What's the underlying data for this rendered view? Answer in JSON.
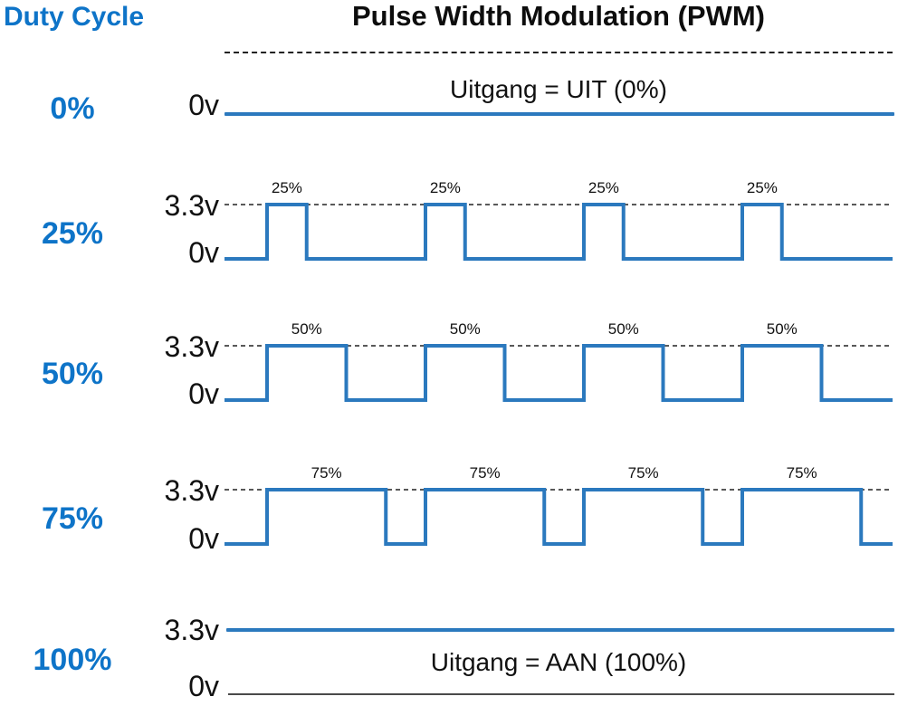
{
  "title": "Pulse Width Modulation (PWM)",
  "corner_label": "Duty Cycle",
  "colors": {
    "label_blue": "#0E74C8",
    "wave_blue": "#2B79BE",
    "dash": "#222222",
    "baseline_gray": "#4a4a4a"
  },
  "rows": [
    {
      "duty_label": "0%",
      "type": "flat_low",
      "low_label": "0v",
      "annotation": "Uitgang = UIT (0%)"
    },
    {
      "duty_label": "25%",
      "type": "pwm",
      "duty_percent": 25,
      "high_label": "3.3v",
      "low_label": "0v",
      "pulse_labels": [
        "25%",
        "25%",
        "25%",
        "25%"
      ]
    },
    {
      "duty_label": "50%",
      "type": "pwm",
      "duty_percent": 50,
      "high_label": "3.3v",
      "low_label": "0v",
      "pulse_labels": [
        "50%",
        "50%",
        "50%",
        "50%"
      ]
    },
    {
      "duty_label": "75%",
      "type": "pwm",
      "duty_percent": 75,
      "high_label": "3.3v",
      "low_label": "0v",
      "pulse_labels": [
        "75%",
        "75%",
        "75%",
        "75%"
      ]
    },
    {
      "duty_label": "100%",
      "type": "flat_high",
      "high_label": "3.3v",
      "low_label": "0v",
      "annotation": "Uitgang = AAN (100%)"
    }
  ],
  "chart_data": {
    "type": "line",
    "title": "Pulse Width Modulation (PWM)",
    "series": [
      {
        "name": "0% duty",
        "duty_percent": 0,
        "high_v": 3.3,
        "low_v": 0,
        "level": "constant 0v",
        "annotation": "Uitgang = UIT (0%)"
      },
      {
        "name": "25% duty",
        "duty_percent": 25,
        "high_v": 3.3,
        "low_v": 0,
        "pulses_shown": 4
      },
      {
        "name": "50% duty",
        "duty_percent": 50,
        "high_v": 3.3,
        "low_v": 0,
        "pulses_shown": 4
      },
      {
        "name": "75% duty",
        "duty_percent": 75,
        "high_v": 3.3,
        "low_v": 0,
        "pulses_shown": 4
      },
      {
        "name": "100% duty",
        "duty_percent": 100,
        "high_v": 3.3,
        "low_v": 0,
        "level": "constant 3.3v",
        "annotation": "Uitgang = AAN (100%)"
      }
    ],
    "ylabels": [
      "0v",
      "3.3v"
    ],
    "xlabel": "",
    "legend_position": "left-column duty-cycle labels"
  }
}
